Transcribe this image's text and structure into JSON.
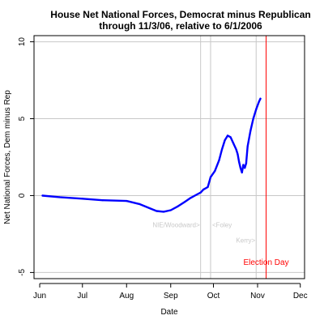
{
  "chart_data": {
    "type": "line",
    "title_line1": "House Net National Forces, Democrat minus Republican",
    "title_line2": "through 11/3/06, relative to 6/1/2006",
    "xlabel": "Date",
    "ylabel": "Net National Forces, Dem minus Rep",
    "xlim": [
      "2006-05-28",
      "2006-12-04"
    ],
    "ylim": [
      -5.4,
      10.4
    ],
    "x_ticks": [
      {
        "date": "2006-06-01",
        "label": "Jun"
      },
      {
        "date": "2006-07-01",
        "label": "Jul"
      },
      {
        "date": "2006-08-01",
        "label": "Aug"
      },
      {
        "date": "2006-09-01",
        "label": "Sep"
      },
      {
        "date": "2006-10-01",
        "label": "Oct"
      },
      {
        "date": "2006-11-01",
        "label": "Nov"
      },
      {
        "date": "2006-12-01",
        "label": "Dec"
      }
    ],
    "y_ticks": [
      -5,
      0,
      5,
      10
    ],
    "grid": true,
    "colors": {
      "series": "#0000ff",
      "event_line": "#c8c8c8",
      "election_line": "#ff0000",
      "grid": "#c8c8c8"
    },
    "series": [
      {
        "points": [
          [
            "2006-06-03",
            0.0
          ],
          [
            "2006-06-15",
            -0.1
          ],
          [
            "2006-07-01",
            -0.2
          ],
          [
            "2006-07-15",
            -0.3
          ],
          [
            "2006-08-01",
            -0.35
          ],
          [
            "2006-08-10",
            -0.55
          ],
          [
            "2006-08-18",
            -0.85
          ],
          [
            "2006-08-22",
            -1.0
          ],
          [
            "2006-08-27",
            -1.05
          ],
          [
            "2006-09-01",
            -0.95
          ],
          [
            "2006-09-06",
            -0.7
          ],
          [
            "2006-09-11",
            -0.4
          ],
          [
            "2006-09-15",
            -0.15
          ],
          [
            "2006-09-19",
            0.05
          ],
          [
            "2006-09-22",
            0.2
          ],
          [
            "2006-09-24",
            0.4
          ],
          [
            "2006-09-27",
            0.55
          ],
          [
            "2006-09-29",
            1.2
          ],
          [
            "2006-10-02",
            1.6
          ],
          [
            "2006-10-05",
            2.3
          ],
          [
            "2006-10-07",
            3.0
          ],
          [
            "2006-10-09",
            3.6
          ],
          [
            "2006-10-11",
            3.9
          ],
          [
            "2006-10-13",
            3.8
          ],
          [
            "2006-10-15",
            3.4
          ],
          [
            "2006-10-17",
            3.0
          ],
          [
            "2006-10-18",
            2.7
          ],
          [
            "2006-10-19",
            2.2
          ],
          [
            "2006-10-20",
            1.8
          ],
          [
            "2006-10-21",
            1.5
          ],
          [
            "2006-10-22",
            2.0
          ],
          [
            "2006-10-23",
            1.8
          ],
          [
            "2006-10-24",
            2.1
          ],
          [
            "2006-10-25",
            3.2
          ],
          [
            "2006-10-27",
            4.2
          ],
          [
            "2006-10-29",
            5.0
          ],
          [
            "2006-10-31",
            5.6
          ],
          [
            "2006-11-02",
            6.1
          ],
          [
            "2006-11-03",
            6.3
          ]
        ]
      }
    ],
    "events": [
      {
        "date": "2006-09-22",
        "label": "NIE/Woodward>",
        "label_y": -2.05,
        "anchor": "end"
      },
      {
        "date": "2006-09-29",
        "label": "<Foley",
        "label_y": -2.05,
        "anchor": "start"
      },
      {
        "date": "2006-10-31",
        "label": "Kerry>",
        "label_y": -3.05,
        "anchor": "end"
      }
    ],
    "election": {
      "date": "2006-11-07",
      "label": "Election Day",
      "label_y": -4.5
    }
  }
}
